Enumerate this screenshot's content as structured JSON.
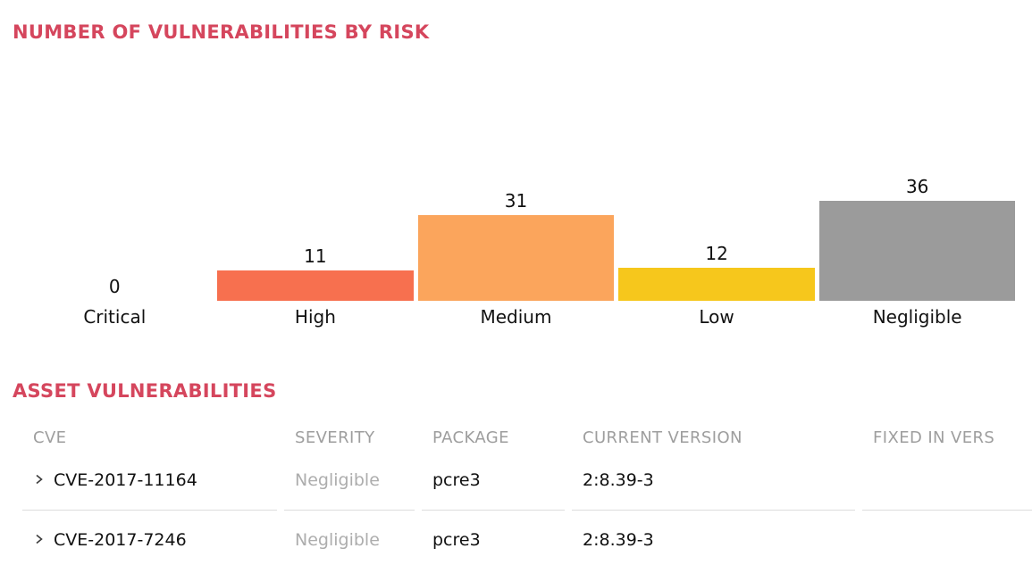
{
  "titles": {
    "chart_section": "NUMBER OF VULNERABILITIES BY RISK",
    "table_section": "ASSET VULNERABILITIES"
  },
  "colors": {
    "accent": "#d5465d",
    "table_header_text": "#9e9e9e",
    "severity_text": "#adadad",
    "row_divider": "#dddddd",
    "body_text": "#111111",
    "chevron": "#3c3c3c",
    "bar_high": "#f7704f",
    "bar_medium": "#fba55c",
    "bar_low": "#f6c71c",
    "bar_negligible": "#9b9b9b"
  },
  "chart_data": {
    "type": "bar",
    "title": "NUMBER OF VULNERABILITIES BY RISK",
    "categories": [
      "Critical",
      "High",
      "Medium",
      "Low",
      "Negligible"
    ],
    "values": [
      0,
      11,
      31,
      12,
      36
    ],
    "bar_colors": [
      "transparent",
      "#f7704f",
      "#fba55c",
      "#f6c71c",
      "#9b9b9b"
    ],
    "value_labels_shown": true,
    "axes_shown": false,
    "grid": false,
    "xlabel": "",
    "ylabel": "",
    "ylim": [
      0,
      36
    ]
  },
  "table": {
    "columns": [
      "CVE",
      "SEVERITY",
      "PACKAGE",
      "CURRENT VERSION",
      "FIXED IN VERS"
    ],
    "rows": [
      {
        "cve": "CVE-2017-11164",
        "severity": "Negligible",
        "package": "pcre3",
        "current_version": "2:8.39-3",
        "fixed_in_version": ""
      },
      {
        "cve": "CVE-2017-7246",
        "severity": "Negligible",
        "package": "pcre3",
        "current_version": "2:8.39-3",
        "fixed_in_version": ""
      }
    ]
  },
  "icons": {
    "row_expander": "chevron-right"
  }
}
